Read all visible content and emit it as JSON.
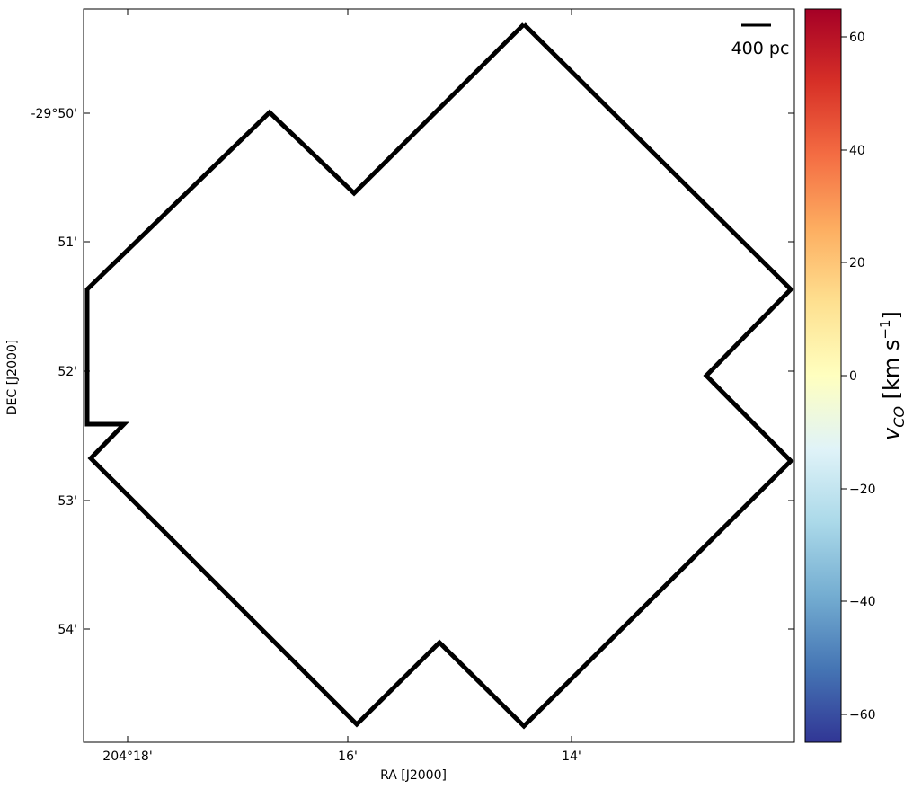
{
  "image": {
    "description_free": true,
    "colormap": "RdYlBu_r",
    "masked_color": "#ffffff"
  },
  "axes": {
    "xlabel": "RA [J2000]",
    "ylabel": "DEC [J2000]",
    "xticks": [
      "204°18'",
      "16'",
      "14'"
    ],
    "yticks": [
      "-29°50'",
      "51'",
      "52'",
      "53'",
      "54'"
    ]
  },
  "scalebar": {
    "label": "400 pc"
  },
  "colorbar": {
    "label_main": "v",
    "label_sub": "CO",
    "label_unit": " [km s",
    "label_sup": "−1",
    "label_close": "]",
    "range": [
      -65,
      65
    ],
    "ticks": [
      "60",
      "40",
      "20",
      "0",
      "−20",
      "−40",
      "−60"
    ],
    "colors": [
      "#313695",
      "#4575b4",
      "#74add1",
      "#abd9e9",
      "#e0f3f8",
      "#ffffbf",
      "#fee090",
      "#fdae61",
      "#f46d43",
      "#d73027",
      "#a50026"
    ]
  }
}
